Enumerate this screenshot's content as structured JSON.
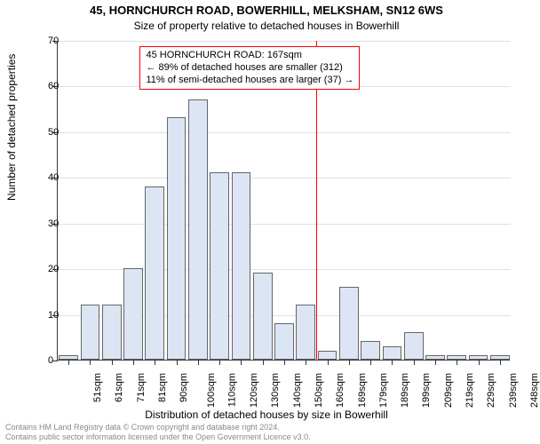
{
  "title_line1": "45, HORNCHURCH ROAD, BOWERHILL, MELKSHAM, SN12 6WS",
  "title_line2": "Size of property relative to detached houses in Bowerhill",
  "title_fontsize": 13,
  "subtitle_fontsize": 12,
  "y_axis_title": "Number of detached properties",
  "x_axis_title": "Distribution of detached houses by size in Bowerhill",
  "axis_title_fontsize": 12,
  "tick_fontsize": 11,
  "chart": {
    "type": "histogram",
    "ylim": [
      0,
      70
    ],
    "ytick_step": 10,
    "y_ticks": [
      0,
      10,
      20,
      30,
      40,
      50,
      60,
      70
    ],
    "x_categories": [
      "51sqm",
      "61sqm",
      "71sqm",
      "81sqm",
      "90sqm",
      "100sqm",
      "110sqm",
      "120sqm",
      "130sqm",
      "140sqm",
      "150sqm",
      "160sqm",
      "169sqm",
      "179sqm",
      "189sqm",
      "199sqm",
      "209sqm",
      "219sqm",
      "229sqm",
      "239sqm",
      "248sqm"
    ],
    "values": [
      1,
      12,
      12,
      20,
      38,
      53,
      57,
      41,
      41,
      19,
      8,
      12,
      2,
      16,
      4,
      3,
      6,
      1,
      1,
      1,
      1
    ],
    "bar_fill": "#dbe5f4",
    "bar_border": "#666666",
    "bar_width": 0.9,
    "grid_color": "#e0e0e0",
    "background_color": "#ffffff",
    "axis_color": "#333333"
  },
  "marker": {
    "position_category_index": 12,
    "line_color": "#ff0000",
    "box_border": "#ff0000",
    "box_bg": "#ffffff",
    "text_line1": "45 HORNCHURCH ROAD: 167sqm",
    "text_line2": "← 89% of detached houses are smaller (312)",
    "text_line3": "11% of semi-detached houses are larger (37) →",
    "text_fontsize": 11
  },
  "footer": {
    "line1": "Contains HM Land Registry data © Crown copyright and database right 2024.",
    "line2": "Contains public sector information licensed under the Open Government Licence v3.0.",
    "fontsize": 9,
    "color": "#888888"
  }
}
